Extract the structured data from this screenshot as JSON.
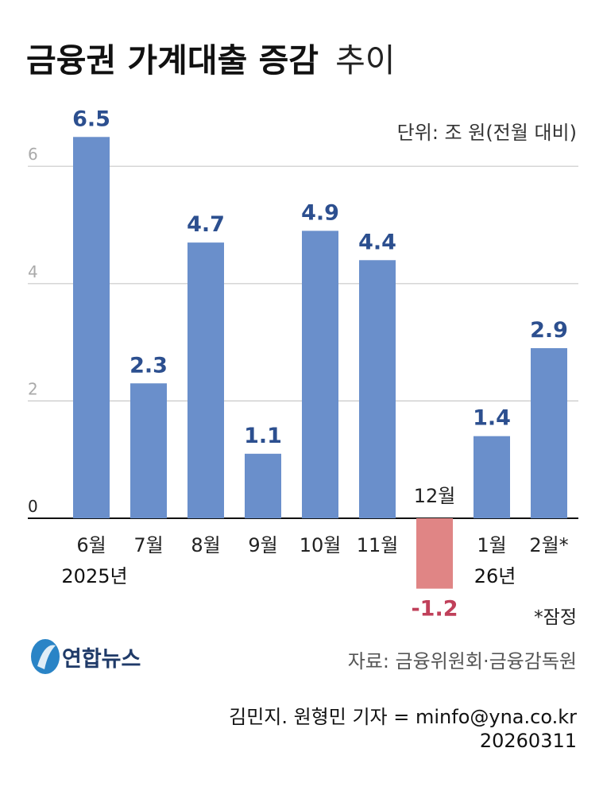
{
  "title": {
    "bold": "금융권 가계대출 증감",
    "light": "추이"
  },
  "unit_note": "단위: 조 원(전월 대비)",
  "footnote": "*잠정",
  "source": "자료: 금융위원회·금융감독원",
  "credit": "김민지. 원형민 기자 = minfo@yna.co.kr",
  "date": "20260311",
  "logo": {
    "text": "연합뉴스",
    "color": "#2a84c6"
  },
  "chart_data": {
    "type": "bar",
    "title": "금융권 가계대출 증감 추이",
    "categories": [
      "6월",
      "7월",
      "8월",
      "9월",
      "10월",
      "11월",
      "12월",
      "1월",
      "2월*"
    ],
    "year_labels": [
      {
        "at": "6월",
        "text": "2025년"
      },
      {
        "at": "1월",
        "text": "26년"
      }
    ],
    "values": [
      6.5,
      2.3,
      4.7,
      1.1,
      4.9,
      4.4,
      -1.2,
      1.4,
      2.9
    ],
    "value_labels": [
      "6.5",
      "2.3",
      "4.7",
      "1.1",
      "4.9",
      "4.4",
      "-1.2",
      "1.4",
      "2.9"
    ],
    "ylim": [
      -1.2,
      6.5
    ],
    "yticks": [
      "0",
      "2",
      "4",
      "6"
    ],
    "grid": true,
    "colors": {
      "positive": "#6a8fcb",
      "negative": "#e08585",
      "positive_label": "#2c4f8f",
      "negative_label": "#c0405a",
      "grid": "#c8c8c8",
      "tick": "#aaaaaa"
    }
  }
}
